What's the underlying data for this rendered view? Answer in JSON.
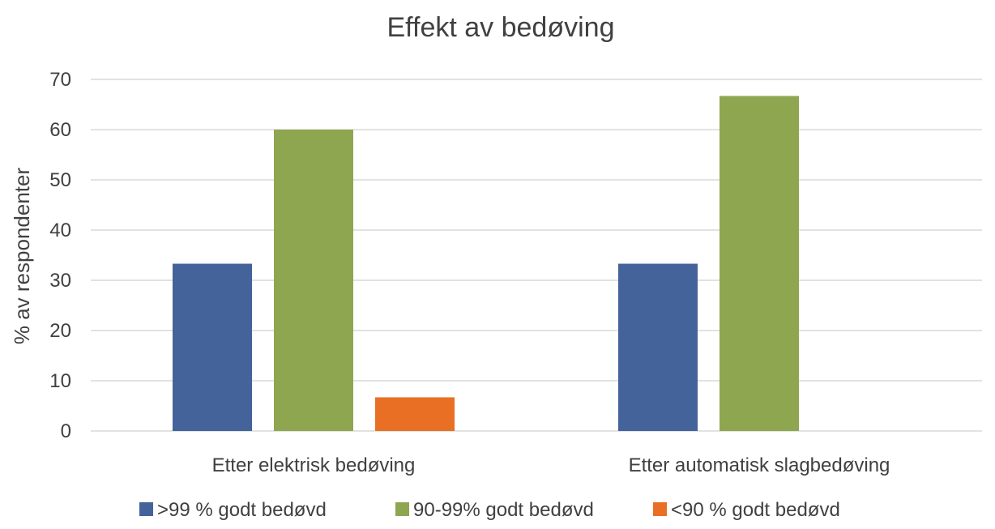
{
  "chart_data": {
    "type": "bar",
    "title": "Effekt av bedøving",
    "xlabel": "",
    "ylabel": "% av respondenter",
    "ylim": [
      0,
      70
    ],
    "yticks": [
      0,
      10,
      20,
      30,
      40,
      50,
      60,
      70
    ],
    "grid": true,
    "legend_position": "bottom",
    "categories": [
      "Etter elektrisk bedøving",
      "Etter automatisk slagbedøving"
    ],
    "series": [
      {
        "name": ">99 % godt bedøvd",
        "color": "#44639a",
        "values": [
          33.3,
          33.3
        ]
      },
      {
        "name": "90-99% godt bedøvd",
        "color": "#8fa651",
        "values": [
          60.0,
          66.7
        ]
      },
      {
        "name": "<90 % godt bedøvd",
        "color": "#e96f24",
        "values": [
          6.7,
          0
        ]
      }
    ]
  }
}
